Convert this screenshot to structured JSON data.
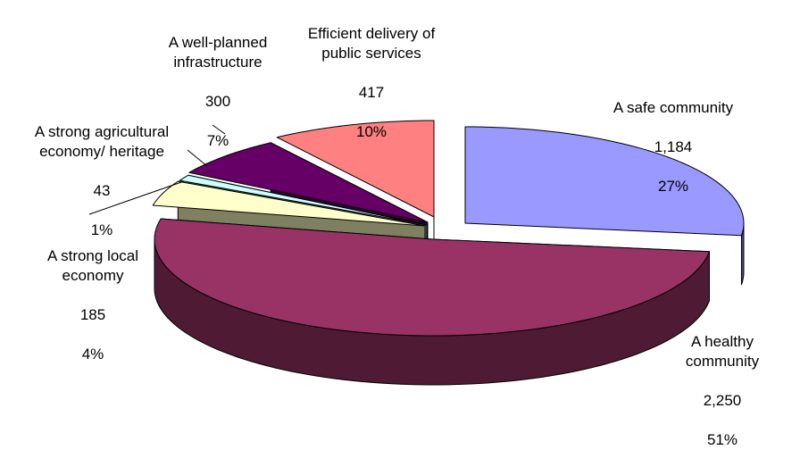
{
  "chart_data": {
    "type": "pie",
    "style": "3d-exploded",
    "categories": [
      "A safe community",
      "A healthy community",
      "A strong local economy",
      "A strong agricultural economy/ heritage",
      "A well-planned infrastructure",
      "Efficient delivery of public services"
    ],
    "values": [
      1184,
      2250,
      185,
      43,
      300,
      417
    ],
    "percents": [
      27,
      51,
      4,
      1,
      7,
      10
    ],
    "labels": [
      {
        "name": "A safe community",
        "value": "1,184",
        "percent": "27%"
      },
      {
        "name": "A healthy community",
        "value": "2,250",
        "percent": "51%"
      },
      {
        "name": "A strong local economy",
        "value": "185",
        "percent": "4%"
      },
      {
        "name": "A strong agricultural economy/ heritage",
        "value": "43",
        "percent": "1%"
      },
      {
        "name": "A well-planned infrastructure",
        "value": "300",
        "percent": "7%"
      },
      {
        "name": "Efficient delivery of public services",
        "value": "417",
        "percent": "10%"
      }
    ],
    "colors": [
      "#9999FF",
      "#993366",
      "#FFFFCC",
      "#CCFFFF",
      "#660066",
      "#FF8080"
    ],
    "side_colors": [
      "#4A4A80",
      "#4F1A33",
      "#7F7F62",
      "#667F80",
      "#330033",
      "#7F4040"
    ],
    "legend": "none"
  }
}
